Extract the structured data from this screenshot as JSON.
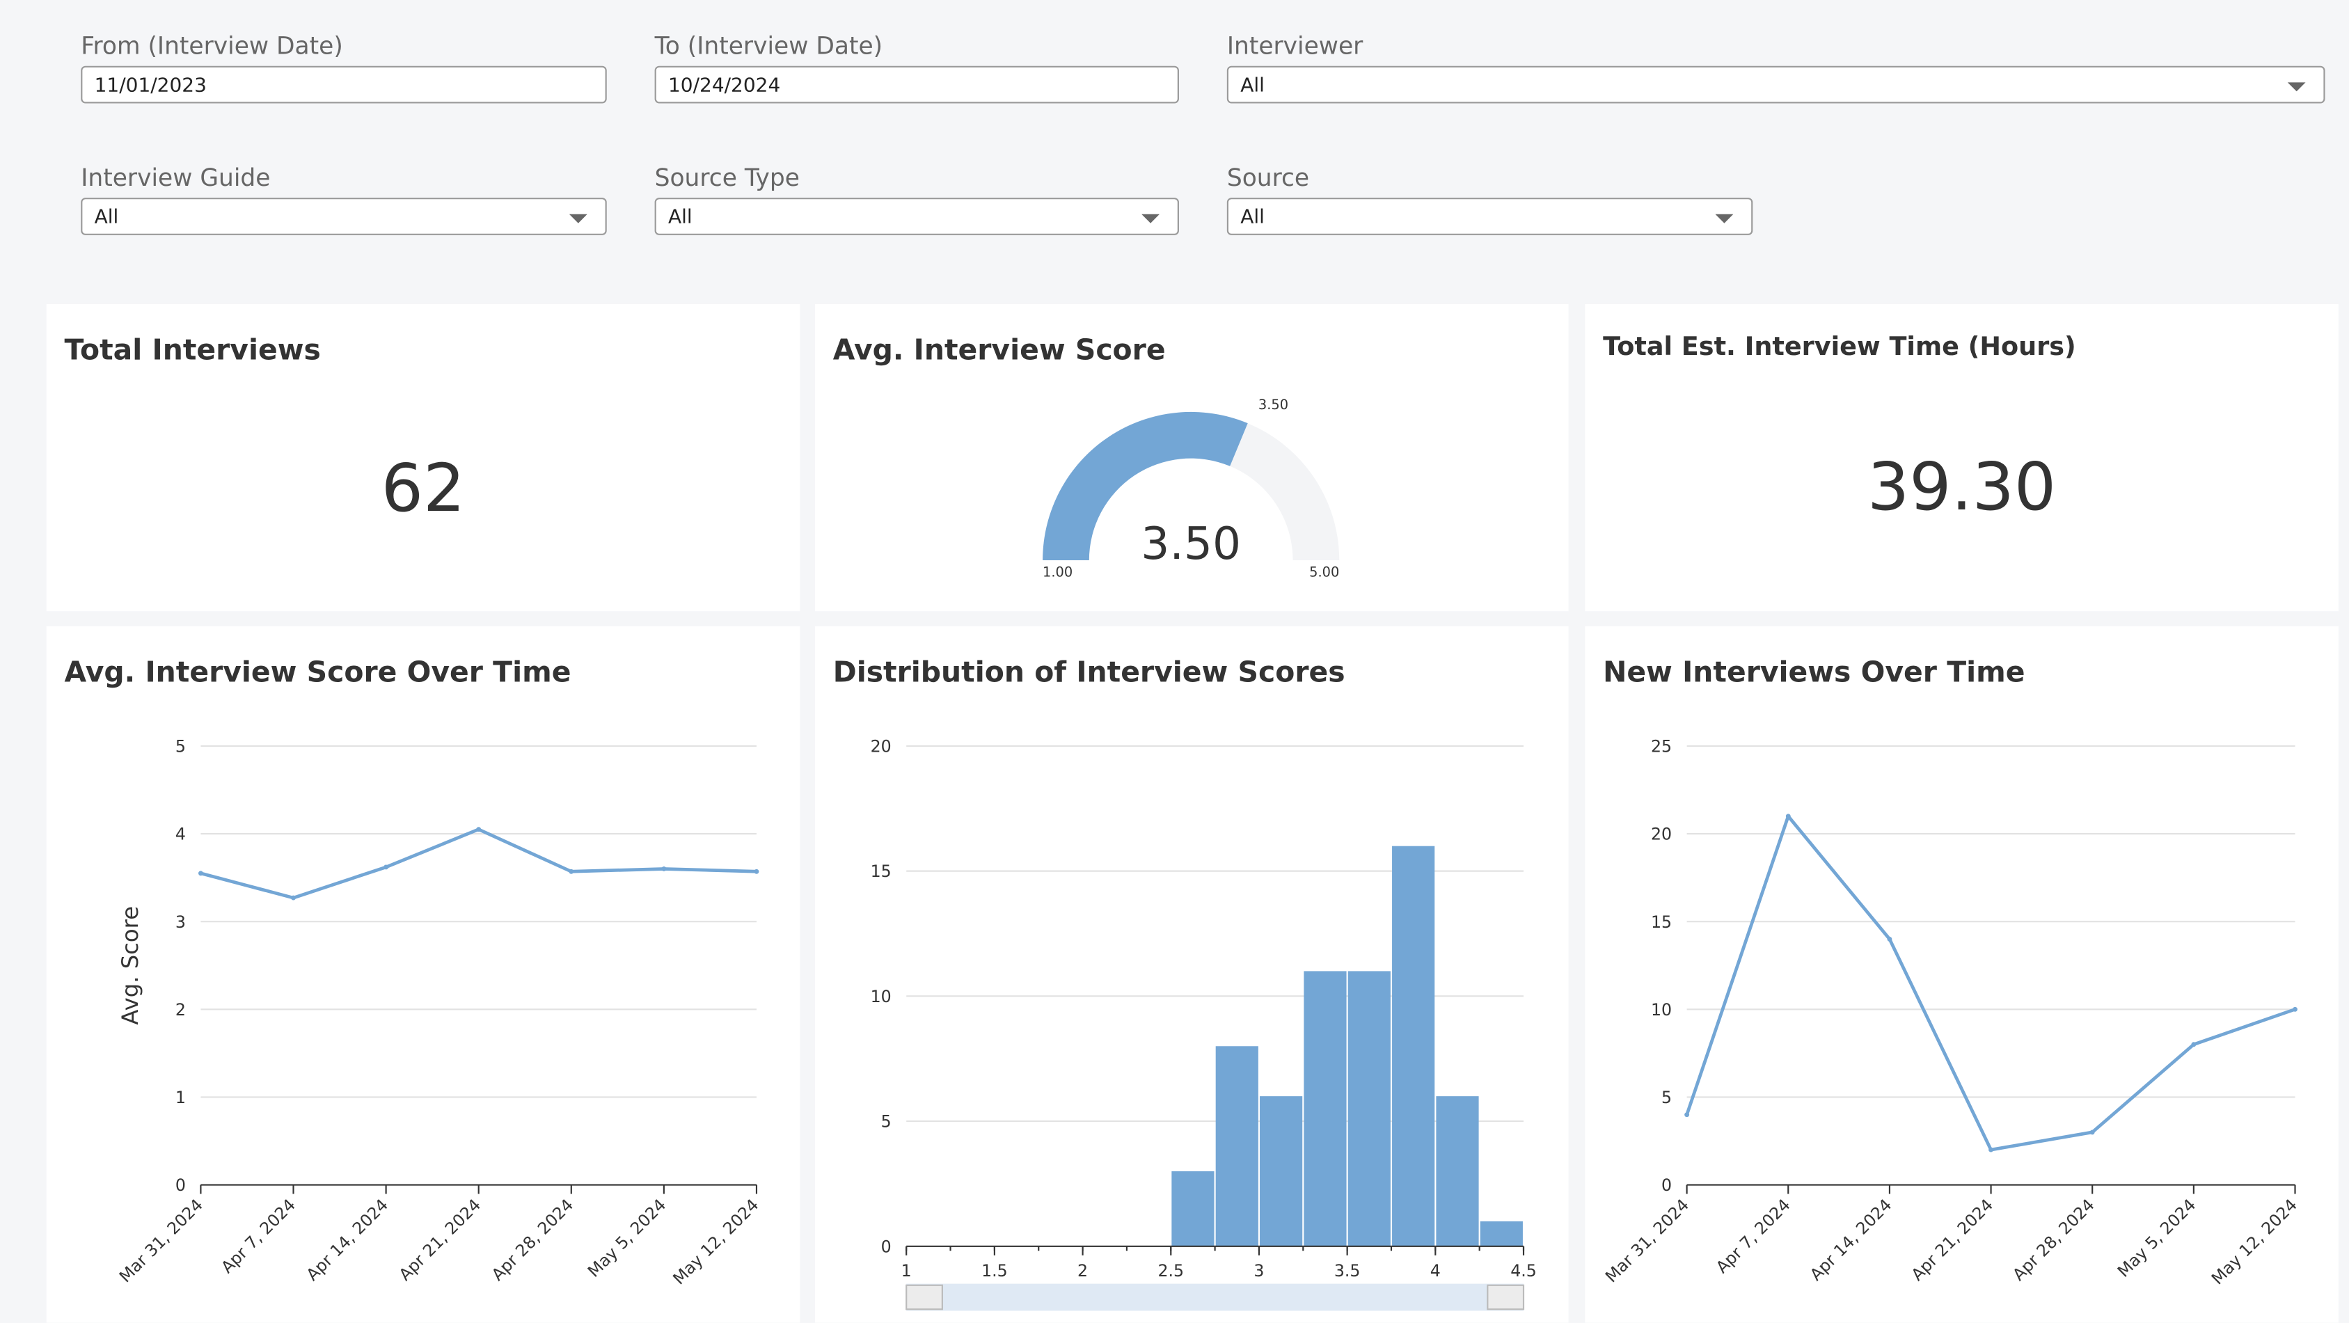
{
  "filters": {
    "from": {
      "label": "From (Interview Date)",
      "value": "11/01/2023"
    },
    "to": {
      "label": "To (Interview Date)",
      "value": "10/24/2024"
    },
    "interviewer": {
      "label": "Interviewer",
      "value": "All"
    },
    "guide": {
      "label": "Interview Guide",
      "value": "All"
    },
    "source_type": {
      "label": "Source Type",
      "value": "All"
    },
    "source": {
      "label": "Source",
      "value": "All"
    }
  },
  "kpis": {
    "total_interviews": {
      "title": "Total Interviews",
      "value": "62"
    },
    "avg_score": {
      "title": "Avg. Interview Score"
    },
    "total_time": {
      "title": "Total Est. Interview Time (Hours)",
      "value": "39.30"
    }
  },
  "colors": {
    "accent": "#73a6d5",
    "gauge_track": "#f3f4f6",
    "grid": "#e2e2e2"
  },
  "chart_data": [
    {
      "type": "gauge",
      "title": "Avg. Interview Score",
      "value": 3.5,
      "min": 1.0,
      "max": 5.0,
      "value_label": "3.50",
      "min_label": "1.00",
      "max_label": "5.00",
      "marker_label": "3.50"
    },
    {
      "type": "line",
      "title": "Avg. Interview Score Over Time",
      "ylabel": "Avg. Score",
      "xlabel": "",
      "categories": [
        "Mar 31, 2024",
        "Apr 7, 2024",
        "Apr 14, 2024",
        "Apr 21, 2024",
        "Apr 28, 2024",
        "May 5, 2024",
        "May 12, 2024"
      ],
      "values": [
        3.55,
        3.27,
        3.62,
        4.05,
        3.57,
        3.6,
        3.57
      ],
      "ylim": [
        0,
        5
      ],
      "yticks": [
        "0",
        "1",
        "2",
        "3",
        "4",
        "5"
      ]
    },
    {
      "type": "bar",
      "title": "Distribution of Interview Scores",
      "bins": [
        [
          2.5,
          2.75,
          3
        ],
        [
          2.75,
          3,
          8
        ],
        [
          3,
          3.25,
          6
        ],
        [
          3.25,
          3.5,
          11
        ],
        [
          3.5,
          3.75,
          11
        ],
        [
          3.75,
          4,
          16
        ],
        [
          4,
          4.25,
          6
        ],
        [
          4.25,
          4.5,
          1
        ]
      ],
      "xlim": [
        1,
        4.5
      ],
      "xticks": [
        "1",
        "1.5",
        "2",
        "2.5",
        "3",
        "3.5",
        "4",
        "4.5"
      ],
      "ylim": [
        0,
        20
      ],
      "yticks": [
        "0",
        "5",
        "10",
        "15",
        "20"
      ]
    },
    {
      "type": "line",
      "title": "New Interviews Over Time",
      "categories": [
        "Mar 31, 2024",
        "Apr 7, 2024",
        "Apr 14, 2024",
        "Apr 21, 2024",
        "Apr 28, 2024",
        "May 5, 2024",
        "May 12, 2024"
      ],
      "values": [
        4,
        21,
        14,
        2,
        3,
        8,
        10
      ],
      "ylim": [
        0,
        25
      ],
      "yticks": [
        "0",
        "5",
        "10",
        "15",
        "20",
        "25"
      ]
    }
  ]
}
